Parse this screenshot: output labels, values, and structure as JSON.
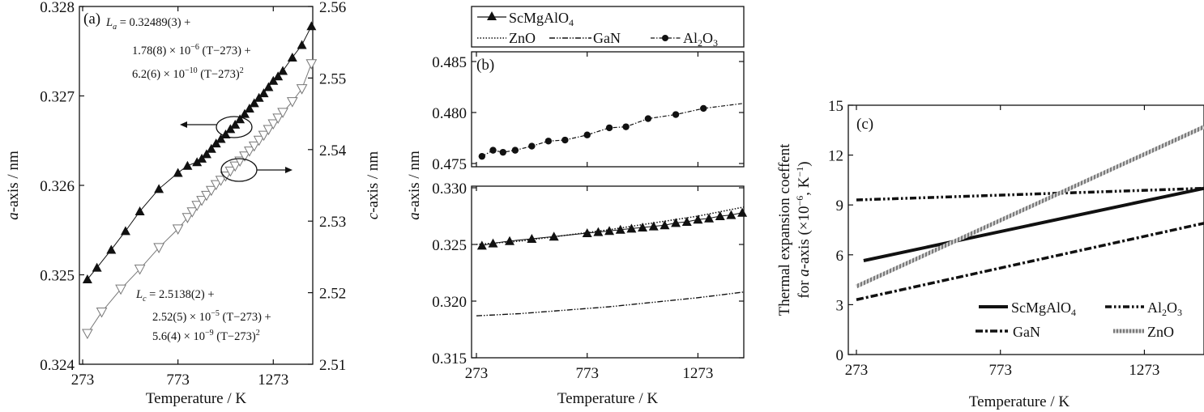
{
  "chart_data": [
    {
      "panel": "(a)",
      "type": "line",
      "xlabel": "Temperature / K",
      "ylabel": "a-axis / nm",
      "y2label": "c-axis / nm",
      "xlim": [
        273,
        1480
      ],
      "ylim": [
        0.324,
        0.328
      ],
      "y2lim": [
        2.51,
        2.56
      ],
      "xticks": [
        "273",
        "773",
        "1273"
      ],
      "yticks": [
        "0.324",
        "0.325",
        "0.326",
        "0.327",
        "0.328"
      ],
      "y2ticks": [
        "2.51",
        "2.52",
        "2.53",
        "2.54",
        "2.55",
        "2.56"
      ],
      "series": [
        {
          "name": "a-axis",
          "axis": "left",
          "marker": "filled-triangle-up",
          "x": [
            298,
            348,
            423,
            498,
            573,
            673,
            773,
            823,
            873,
            898,
            923,
            948,
            973,
            998,
            1023,
            1048,
            1073,
            1098,
            1123,
            1148,
            1173,
            1198,
            1223,
            1248,
            1273,
            1298,
            1323,
            1373,
            1423,
            1473
          ],
          "y": [
            0.32495,
            0.32508,
            0.32528,
            0.32549,
            0.32571,
            0.32596,
            0.32614,
            0.32622,
            0.32626,
            0.3263,
            0.32635,
            0.32641,
            0.32647,
            0.32652,
            0.32657,
            0.32663,
            0.32668,
            0.32674,
            0.3268,
            0.32686,
            0.32692,
            0.32698,
            0.32703,
            0.3271,
            0.32717,
            0.32722,
            0.32728,
            0.32743,
            0.32757,
            0.32778
          ]
        },
        {
          "name": "c-axis",
          "axis": "right",
          "marker": "open-triangle-down",
          "x": [
            298,
            373,
            473,
            573,
            673,
            773,
            823,
            848,
            873,
            898,
            923,
            948,
            973,
            998,
            1023,
            1048,
            1073,
            1098,
            1123,
            1148,
            1173,
            1198,
            1223,
            1248,
            1273,
            1298,
            1323,
            1373,
            1423,
            1473
          ],
          "y": [
            2.5143,
            2.5173,
            2.5205,
            2.5233,
            2.5263,
            2.5289,
            2.5305,
            2.5313,
            2.5322,
            2.5329,
            2.5336,
            2.5343,
            2.5351,
            2.5357,
            2.5363,
            2.537,
            2.5377,
            2.5384,
            2.5391,
            2.5398,
            2.5405,
            2.5413,
            2.542,
            2.5428,
            2.5436,
            2.5444,
            2.5452,
            2.5467,
            2.5485,
            2.552
          ]
        }
      ],
      "annotations": {
        "la_line1_prefix": "L",
        "la_line1_sub": "a",
        "la_line1_rest": " = 0.32489(3) +",
        "la_line2_a": "1.78(8) × 10",
        "la_line2_sup": "−6",
        "la_line2_b": " (T−273) +",
        "la_line3_a": "6.2(6) × 10",
        "la_line3_sup": "−10",
        "la_line3_b": " (T−273)",
        "la_line3_sq": "2",
        "lc_line1_prefix": "L",
        "lc_line1_sub": "c",
        "lc_line1_rest": " = 2.5138(2) +",
        "lc_line2_a": "2.52(5) × 10",
        "lc_line2_sup": "−5",
        "lc_line2_b": " (T−273) +",
        "lc_line3_a": "5.6(4) × 10",
        "lc_line3_sup": "−9",
        "lc_line3_b": " (T−273)",
        "lc_line3_sq": "2"
      }
    },
    {
      "panel": "(b)",
      "type": "line",
      "xlabel": "Temperature / K",
      "ylabel": "a-axis / nm",
      "xlim": [
        273,
        1480
      ],
      "xticks": [
        "273",
        "773",
        "1273"
      ],
      "top_ylim": [
        0.475,
        0.485
      ],
      "top_yticks": [
        "0.475",
        "0.480",
        "0.485"
      ],
      "bottom_ylim": [
        0.315,
        0.33
      ],
      "bottom_yticks": [
        "0.315",
        "0.320",
        "0.325",
        "0.330"
      ],
      "legend": [
        {
          "label": "ScMgAlO",
          "sub": "4",
          "style": "solid-triangle"
        },
        {
          "label": "ZnO",
          "sub": "",
          "style": "dotted"
        },
        {
          "label": "GaN",
          "sub": "",
          "style": "dash-dot-dot"
        },
        {
          "label": "Al",
          "sub": "2",
          "label2": "O",
          "sub2": "3",
          "style": "dash-dot-circle"
        }
      ],
      "series": [
        {
          "name": "Al2O3",
          "panel_part": "top",
          "x": [
            298,
            348,
            393,
            448,
            523,
            598,
            673,
            773,
            873,
            948,
            1048,
            1173,
            1298
          ],
          "y": [
            0.4757,
            0.4763,
            0.4761,
            0.4763,
            0.4767,
            0.4772,
            0.4773,
            0.4778,
            0.4785,
            0.4786,
            0.4794,
            0.4798,
            0.4804
          ]
        },
        {
          "name": "ScMgAlO4",
          "panel_part": "bottom",
          "x": [
            298,
            348,
            423,
            523,
            623,
            773,
            823,
            873,
            923,
            973,
            1023,
            1073,
            1123,
            1173,
            1223,
            1273,
            1323,
            1373,
            1423,
            1473
          ],
          "y": [
            0.3249,
            0.3251,
            0.3253,
            0.3255,
            0.3257,
            0.326,
            0.3261,
            0.3262,
            0.3263,
            0.3264,
            0.3265,
            0.3266,
            0.3267,
            0.3269,
            0.327,
            0.3272,
            0.3273,
            0.3275,
            0.3276,
            0.3278
          ]
        },
        {
          "name": "ZnO",
          "panel_part": "bottom",
          "x": [
            273,
            473,
            673,
            873,
            1073,
            1273,
            1480
          ],
          "y": [
            0.325,
            0.3253,
            0.3258,
            0.3263,
            0.3269,
            0.3275,
            0.3283
          ]
        },
        {
          "name": "GaN",
          "panel_part": "bottom",
          "x": [
            273,
            473,
            673,
            873,
            1073,
            1273,
            1480
          ],
          "y": [
            0.3187,
            0.3189,
            0.3192,
            0.3195,
            0.3199,
            0.3203,
            0.3208
          ]
        }
      ]
    },
    {
      "panel": "(c)",
      "type": "line",
      "xlabel": "Temperature / K",
      "ylabel_line1": "Thermal expansion coeffent",
      "ylabel_line2_a": "for ",
      "ylabel_line2_italic": "a",
      "ylabel_line2_b": "-axis (×10",
      "ylabel_line2_sup": "−6",
      "ylabel_line2_c": ", K",
      "ylabel_line2_sup2": "−1",
      "ylabel_line2_d": ")",
      "xlim": [
        273,
        1480
      ],
      "ylim": [
        0,
        15
      ],
      "xticks": [
        "273",
        "773",
        "1273"
      ],
      "yticks": [
        "0",
        "3",
        "6",
        "9",
        "12",
        "15"
      ],
      "legend": [
        {
          "label": "ScMgAlO",
          "sub": "4",
          "style": "solid"
        },
        {
          "label": "Al",
          "sub": "2",
          "label2": "O",
          "sub2": "3",
          "style": "dash-dot-dot"
        },
        {
          "label": "GaN",
          "sub": "",
          "style": "dash-dot"
        },
        {
          "label": "ZnO",
          "sub": "",
          "style": "hatched"
        }
      ],
      "series": [
        {
          "name": "ScMgAlO4",
          "x": [
            298,
            1480
          ],
          "y": [
            5.65,
            10.0
          ]
        },
        {
          "name": "Al2O3",
          "x": [
            273,
            1480
          ],
          "y": [
            9.3,
            10.0
          ]
        },
        {
          "name": "GaN",
          "x": [
            273,
            1480
          ],
          "y": [
            3.3,
            7.9
          ]
        },
        {
          "name": "ZnO",
          "x": [
            273,
            1480
          ],
          "y": [
            4.1,
            13.7
          ]
        }
      ]
    }
  ]
}
